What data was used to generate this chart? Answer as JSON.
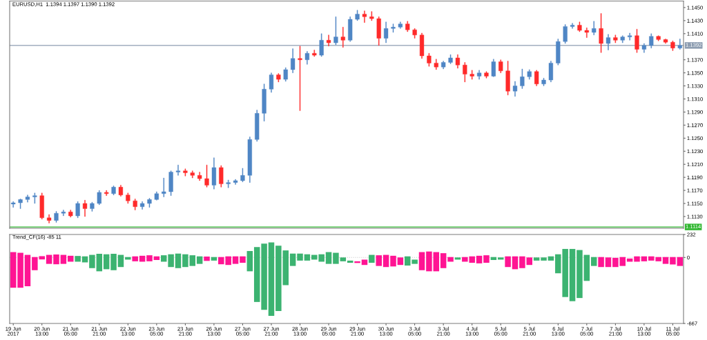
{
  "chart_data": [
    {
      "type": "candlestick",
      "title": "EURUSD,H1  1.1394 1.1397 1.1390 1.1392",
      "categories": [
        null,
        null,
        null,
        null,
        null,
        null,
        null,
        null,
        null,
        null,
        null,
        null,
        null,
        null,
        null,
        null,
        null,
        null,
        null,
        null,
        null,
        null,
        null,
        null,
        null,
        null,
        null,
        null,
        null,
        null,
        null,
        null,
        null,
        null,
        null,
        null,
        null,
        null,
        null,
        null,
        null,
        null,
        null,
        null,
        null,
        null,
        null,
        null,
        null,
        null,
        null,
        null,
        null,
        null,
        null,
        null,
        null,
        null,
        null,
        null,
        null,
        null,
        null,
        null,
        null,
        null,
        null,
        null,
        null,
        null,
        null,
        null,
        null,
        null,
        null,
        null,
        null,
        null,
        null,
        null,
        null,
        null,
        null,
        null,
        null,
        null,
        null,
        null,
        null,
        null,
        null,
        null,
        null,
        null
      ],
      "ohlc": [
        [
          1.1149,
          1.1153,
          1.1144,
          1.1151
        ],
        [
          1.1151,
          1.1157,
          1.1142,
          1.1156
        ],
        [
          1.1156,
          1.1163,
          1.1152,
          1.116
        ],
        [
          1.116,
          1.1166,
          1.115,
          1.1162
        ],
        [
          1.1162,
          1.1166,
          1.1126,
          1.1128
        ],
        [
          1.1128,
          1.1133,
          1.112,
          1.1124
        ],
        [
          1.1124,
          1.1138,
          1.1121,
          1.1135
        ],
        [
          1.1135,
          1.114,
          1.1131,
          1.1137
        ],
        [
          1.1137,
          1.114,
          1.1129,
          1.1131
        ],
        [
          1.1131,
          1.1153,
          1.1128,
          1.115
        ],
        [
          1.115,
          1.1155,
          1.113,
          1.1142
        ],
        [
          1.1142,
          1.1152,
          1.1138,
          1.115
        ],
        [
          1.115,
          1.117,
          1.1148,
          1.1167
        ],
        [
          1.1167,
          1.117,
          1.1162,
          1.1165
        ],
        [
          1.1165,
          1.1177,
          1.1163,
          1.1175
        ],
        [
          1.1175,
          1.1178,
          1.1161,
          1.1163
        ],
        [
          1.1163,
          1.1166,
          1.115,
          1.1154
        ],
        [
          1.1154,
          1.1157,
          1.114,
          1.1145
        ],
        [
          1.1145,
          1.1153,
          1.1141,
          1.115
        ],
        [
          1.115,
          1.1158,
          1.1144,
          1.1156
        ],
        [
          1.1156,
          1.1168,
          1.1155,
          1.1165
        ],
        [
          1.1165,
          1.1189,
          1.116,
          1.1168
        ],
        [
          1.1168,
          1.12,
          1.1162,
          1.1198
        ],
        [
          1.1198,
          1.1209,
          1.1193,
          1.12
        ],
        [
          1.12,
          1.1203,
          1.1192,
          1.1197
        ],
        [
          1.1197,
          1.12,
          1.1189,
          1.1193
        ],
        [
          1.1193,
          1.1198,
          1.1185,
          1.1188
        ],
        [
          1.1188,
          1.1209,
          1.1175,
          1.1178
        ],
        [
          1.1178,
          1.122,
          1.1172,
          1.1205
        ],
        [
          1.1205,
          1.1208,
          1.1175,
          1.118
        ],
        [
          1.118,
          1.1186,
          1.1174,
          1.1182
        ],
        [
          1.1182,
          1.1187,
          1.1179,
          1.1185
        ],
        [
          1.1185,
          1.1204,
          1.1183,
          1.1193
        ],
        [
          1.1193,
          1.1252,
          1.1182,
          1.1248
        ],
        [
          1.1248,
          1.1293,
          1.1245,
          1.1288
        ],
        [
          1.1288,
          1.1333,
          1.1276,
          1.1325
        ],
        [
          1.1325,
          1.135,
          1.132,
          1.1347
        ],
        [
          1.1347,
          1.1349,
          1.1336,
          1.134
        ],
        [
          1.134,
          1.1358,
          1.1337,
          1.1355
        ],
        [
          1.1355,
          1.1387,
          1.135,
          1.1372
        ],
        [
          1.1372,
          1.1391,
          1.1292,
          1.137
        ],
        [
          1.137,
          1.1383,
          1.1363,
          1.138
        ],
        [
          1.138,
          1.1385,
          1.1375,
          1.1377
        ],
        [
          1.1377,
          1.141,
          1.1375,
          1.14
        ],
        [
          1.14,
          1.1408,
          1.1391,
          1.1396
        ],
        [
          1.1396,
          1.1436,
          1.1393,
          1.1405
        ],
        [
          1.1405,
          1.142,
          1.1389,
          1.14
        ],
        [
          1.14,
          1.1436,
          1.1398,
          1.1432
        ],
        [
          1.1432,
          1.1446,
          1.143,
          1.144
        ],
        [
          1.144,
          1.1445,
          1.1427,
          1.1436
        ],
        [
          1.1436,
          1.1444,
          1.143,
          1.1433
        ],
        [
          1.1433,
          1.1436,
          1.1392,
          1.1403
        ],
        [
          1.1403,
          1.1428,
          1.1396,
          1.1418
        ],
        [
          1.1418,
          1.1425,
          1.1412,
          1.142
        ],
        [
          1.142,
          1.1428,
          1.1418,
          1.1425
        ],
        [
          1.1425,
          1.1429,
          1.1413,
          1.1416
        ],
        [
          1.1416,
          1.1418,
          1.1403,
          1.1408
        ],
        [
          1.1408,
          1.1411,
          1.1372,
          1.1376
        ],
        [
          1.1376,
          1.138,
          1.136,
          1.1365
        ],
        [
          1.1365,
          1.1371,
          1.1355,
          1.1359
        ],
        [
          1.1359,
          1.1368,
          1.1356,
          1.1366
        ],
        [
          1.1366,
          1.1378,
          1.1364,
          1.1373
        ],
        [
          1.1373,
          1.1378,
          1.1357,
          1.1362
        ],
        [
          1.1362,
          1.1366,
          1.1336,
          1.1348
        ],
        [
          1.1348,
          1.1354,
          1.134,
          1.1345
        ],
        [
          1.1345,
          1.1354,
          1.134,
          1.135
        ],
        [
          1.135,
          1.1352,
          1.1342,
          1.1345
        ],
        [
          1.1345,
          1.1371,
          1.1344,
          1.1367
        ],
        [
          1.1367,
          1.137,
          1.135,
          1.1353
        ],
        [
          1.1353,
          1.1368,
          1.1316,
          1.1322
        ],
        [
          1.1322,
          1.1337,
          1.1314,
          1.133
        ],
        [
          1.133,
          1.1356,
          1.1326,
          1.1344
        ],
        [
          1.1344,
          1.1355,
          1.134,
          1.1352
        ],
        [
          1.1352,
          1.1354,
          1.133,
          1.1333
        ],
        [
          1.1333,
          1.1342,
          1.133,
          1.1339
        ],
        [
          1.1339,
          1.1368,
          1.1336,
          1.1365
        ],
        [
          1.1365,
          1.1402,
          1.1362,
          1.1398
        ],
        [
          1.1398,
          1.1424,
          1.1395,
          1.1421
        ],
        [
          1.1421,
          1.1426,
          1.1418,
          1.1423
        ],
        [
          1.1423,
          1.1428,
          1.1413,
          1.1415
        ],
        [
          1.1415,
          1.1419,
          1.1404,
          1.1412
        ],
        [
          1.1412,
          1.1429,
          1.1408,
          1.1418
        ],
        [
          1.1418,
          1.1441,
          1.1381,
          1.1395
        ],
        [
          1.1395,
          1.1409,
          1.1385,
          1.1404
        ],
        [
          1.1404,
          1.1408,
          1.1396,
          1.14
        ],
        [
          1.14,
          1.1407,
          1.1396,
          1.1405
        ],
        [
          1.1405,
          1.1411,
          1.14,
          1.1407
        ],
        [
          1.1407,
          1.1417,
          1.1381,
          1.1386
        ],
        [
          1.1386,
          1.1395,
          1.1381,
          1.1392
        ],
        [
          1.1392,
          1.141,
          1.1388,
          1.1406
        ],
        [
          1.1406,
          1.1407,
          1.1399,
          1.1401
        ],
        [
          1.1401,
          1.1402,
          1.1395,
          1.1397
        ],
        [
          1.1397,
          1.1399,
          1.1384,
          1.1388
        ],
        [
          1.1388,
          1.1402,
          1.1386,
          1.1392
        ]
      ],
      "colors": [
        "#4f86c5",
        "#4f86c5",
        "#4f86c5",
        "#4f86c5",
        "#ff2a2a",
        "#ff2a2a",
        "#4f86c5",
        "#4f86c5",
        "#ff2a2a",
        "#4f86c5",
        "#ff2a2a",
        "#4f86c5",
        "#4f86c5",
        "#ff2a2a",
        "#4f86c5",
        "#ff2a2a",
        "#ff2a2a",
        "#ff2a2a",
        "#4f86c5",
        "#4f86c5",
        "#4f86c5",
        "#4f86c5",
        "#4f86c5",
        "#4f86c5",
        "#ff2a2a",
        "#ff2a2a",
        "#ff2a2a",
        "#ff2a2a",
        "#4f86c5",
        "#ff2a2a",
        "#4f86c5",
        "#4f86c5",
        "#4f86c5",
        "#4f86c5",
        "#4f86c5",
        "#4f86c5",
        "#4f86c5",
        "#ff2a2a",
        "#4f86c5",
        "#4f86c5",
        "#ff2a2a",
        "#4f86c5",
        "#ff2a2a",
        "#4f86c5",
        "#ff2a2a",
        "#4f86c5",
        "#ff2a2a",
        "#4f86c5",
        "#4f86c5",
        "#ff2a2a",
        "#ff2a2a",
        "#ff2a2a",
        "#4f86c5",
        "#4f86c5",
        "#4f86c5",
        "#ff2a2a",
        "#ff2a2a",
        "#ff2a2a",
        "#ff2a2a",
        "#ff2a2a",
        "#4f86c5",
        "#4f86c5",
        "#ff2a2a",
        "#ff2a2a",
        "#ff2a2a",
        "#4f86c5",
        "#ff2a2a",
        "#4f86c5",
        "#ff2a2a",
        "#ff2a2a",
        "#4f86c5",
        "#4f86c5",
        "#4f86c5",
        "#ff2a2a",
        "#4f86c5",
        "#4f86c5",
        "#4f86c5",
        "#4f86c5",
        "#4f86c5",
        "#ff2a2a",
        "#ff2a2a",
        "#4f86c5",
        "#ff2a2a",
        "#4f86c5",
        "#ff2a2a",
        "#4f86c5",
        "#4f86c5",
        "#ff2a2a",
        "#4f86c5",
        "#4f86c5",
        "#ff2a2a",
        "#ff2a2a",
        "#ff2a2a",
        "#4f86c5"
      ],
      "ylim": [
        1.1112,
        1.146
      ],
      "yticks": [
        {
          "value": 1.145,
          "label": "1.1450"
        },
        {
          "value": 1.143,
          "label": "1.1430"
        },
        {
          "value": 1.141,
          "label": "1.1410"
        },
        {
          "value": 1.137,
          "label": "1.1370"
        },
        {
          "value": 1.135,
          "label": "1.1350"
        },
        {
          "value": 1.133,
          "label": "1.1330"
        },
        {
          "value": 1.131,
          "label": "1.1310"
        },
        {
          "value": 1.129,
          "label": "1.1290"
        },
        {
          "value": 1.127,
          "label": "1.1270"
        },
        {
          "value": 1.125,
          "label": "1.1250"
        },
        {
          "value": 1.123,
          "label": "1.1230"
        },
        {
          "value": 1.121,
          "label": "1.1210"
        },
        {
          "value": 1.119,
          "label": "1.1190"
        },
        {
          "value": 1.117,
          "label": "1.1170"
        },
        {
          "value": 1.115,
          "label": "1.1150"
        },
        {
          "value": 1.113,
          "label": "1.1130"
        }
      ],
      "ref_lines": [
        {
          "axis": "y",
          "value": 1.1392,
          "label": "1.1392",
          "color": "#8d9db1"
        },
        {
          "axis": "y",
          "value": 1.1114,
          "label": "1.1114",
          "color": "#33b833"
        }
      ]
    },
    {
      "type": "bar",
      "title": "Trend_CF(16) -85 11",
      "categories": [
        "19 Jun 2017",
        null,
        null,
        null,
        "20 Jun 13:00",
        null,
        null,
        null,
        "21 Jun 05:00",
        null,
        null,
        null,
        "21 Jun 21:00",
        null,
        null,
        null,
        "22 Jun 13:00",
        null,
        null,
        null,
        "23 Jun 05:00",
        null,
        null,
        null,
        "23 Jun 21:00",
        null,
        null,
        null,
        "26 Jun 13:00",
        null,
        null,
        null,
        "27 Jun 05:00",
        null,
        null,
        null,
        "27 Jun 21:00",
        null,
        null,
        null,
        "28 Jun 13:00",
        null,
        null,
        null,
        "29 Jun 05:00",
        null,
        null,
        null,
        "29 Jun 21:00",
        null,
        null,
        null,
        "30 Jun 13:00",
        null,
        null,
        null,
        "3 Jul 05:00",
        null,
        null,
        null,
        "3 Jul 21:00",
        null,
        null,
        null,
        "4 Jul 13:00",
        null,
        null,
        null,
        "5 Jul 05:00",
        null,
        null,
        null,
        "5 Jul 21:00",
        null,
        null,
        null,
        "6 Jul 13:00",
        null,
        null,
        null,
        "7 Jul 05:00",
        null,
        null,
        null,
        "7 Jul 21:00",
        null,
        null,
        null,
        "10 Jul 13:00",
        null,
        null,
        null,
        "11 Jul 05:00",
        null
      ],
      "base": [
        -306,
        -306,
        -291,
        -129,
        -20,
        -65,
        -69,
        -65,
        -43,
        -43,
        -50,
        -108,
        -140,
        -119,
        -129,
        -97,
        -22,
        -39,
        -43,
        -39,
        -26,
        -43,
        -97,
        -108,
        -97,
        -86,
        -65,
        -35,
        -32,
        -69,
        -76,
        -65,
        -54,
        -140,
        -450,
        -530,
        -590,
        -541,
        -280,
        -86,
        -32,
        -32,
        -22,
        -43,
        -65,
        -65,
        -39,
        -54,
        -56,
        -76,
        -54,
        -86,
        -97,
        -91,
        -76,
        -82,
        -65,
        -129,
        -140,
        -140,
        -108,
        -43,
        -22,
        -43,
        -54,
        -60,
        -54,
        -26,
        -22,
        -97,
        -119,
        -108,
        -76,
        -32,
        -32,
        -32,
        -160,
        -400,
        -442,
        -410,
        -237,
        -86,
        -97,
        -97,
        -97,
        -86,
        -43,
        -43,
        -39,
        -32,
        -39,
        -65,
        -71,
        -86
      ],
      "values": [
        360,
        353,
        317,
        133,
        33,
        91,
        99,
        91,
        60,
        58,
        61,
        134,
        177,
        151,
        166,
        123,
        26,
        50,
        60,
        61,
        37,
        65,
        129,
        147,
        129,
        108,
        76,
        44,
        36,
        73,
        87,
        76,
        65,
        205,
        555,
        670,
        741,
        660,
        351,
        125,
        71,
        64,
        48,
        75,
        119,
        112,
        39,
        22,
        17,
        54,
        80,
        108,
        123,
        108,
        76,
        93,
        43,
        183,
        200,
        194,
        151,
        47,
        22,
        47,
        65,
        77,
        76,
        30,
        22,
        108,
        130,
        119,
        76,
        32,
        32,
        43,
        192,
        486,
        528,
        485,
        263,
        90,
        101,
        97,
        93,
        90,
        32,
        54,
        50,
        43,
        43,
        69,
        75,
        90
      ],
      "colors": [
        "#ff1493",
        "#ff1493",
        "#ff1493",
        "#ff1493",
        "#ff1493",
        "#ff1493",
        "#ff1493",
        "#ff1493",
        "#ff1493",
        "#3cb371",
        "#3cb371",
        "#3cb371",
        "#3cb371",
        "#3cb371",
        "#3cb371",
        "#3cb371",
        "#3cb371",
        "#ff1493",
        "#ff1493",
        "#ff1493",
        "#ff1493",
        "#3cb371",
        "#3cb371",
        "#3cb371",
        "#3cb371",
        "#3cb371",
        "#3cb371",
        "#ff1493",
        "#3cb371",
        "#ff1493",
        "#ff1493",
        "#ff1493",
        "#ff1493",
        "#3cb371",
        "#3cb371",
        "#3cb371",
        "#3cb371",
        "#3cb371",
        "#3cb371",
        "#3cb371",
        "#3cb371",
        "#3cb371",
        "#3cb371",
        "#3cb371",
        "#3cb371",
        "#3cb371",
        "#3cb371",
        "#3cb371",
        "#ff1493",
        "#ff1493",
        "#3cb371",
        "#ff1493",
        "#ff1493",
        "#ff1493",
        "#ff1493",
        "#3cb371",
        "#3cb371",
        "#ff1493",
        "#ff1493",
        "#ff1493",
        "#ff1493",
        "#ff1493",
        "#3cb371",
        "#ff1493",
        "#ff1493",
        "#ff1493",
        "#ff1493",
        "#3cb371",
        "#3cb371",
        "#ff1493",
        "#ff1493",
        "#ff1493",
        "#ff1493",
        "#3cb371",
        "#3cb371",
        "#3cb371",
        "#3cb371",
        "#3cb371",
        "#3cb371",
        "#3cb371",
        "#3cb371",
        "#3cb371",
        "#ff1493",
        "#ff1493",
        "#ff1493",
        "#ff1493",
        "#ff1493",
        "#ff1493",
        "#ff1493",
        "#ff1493",
        "#ff1493",
        "#ff1493",
        "#ff1493",
        "#ff1493"
      ],
      "ylim": [
        -667,
        232
      ],
      "yticks": [
        232,
        0,
        -667
      ],
      "ref_lines": [
        {
          "axis": "y",
          "value": 0,
          "color": "#c8c8c8",
          "line_style": "dotted"
        }
      ]
    }
  ]
}
